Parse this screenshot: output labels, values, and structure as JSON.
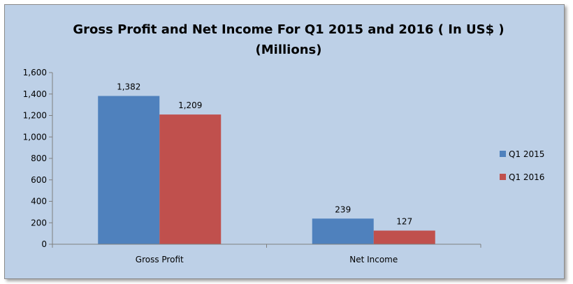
{
  "chart_data": {
    "type": "bar",
    "title_line1": "Gross Profit and Net Income For Q1 2015 and 2016 ( In US$ )",
    "title_line2": "(Millions)",
    "categories": [
      "Gross Profit",
      "Net Income"
    ],
    "series": [
      {
        "name": "Q1 2015",
        "values": [
          1382,
          239
        ],
        "labels": [
          "1,382",
          "239"
        ],
        "color": "#4f81bd"
      },
      {
        "name": "Q1 2016",
        "values": [
          1209,
          127
        ],
        "labels": [
          "1,209",
          "127"
        ],
        "color": "#c0504d"
      }
    ],
    "ylim": [
      0,
      1600
    ],
    "yticks": [
      0,
      200,
      400,
      600,
      800,
      1000,
      1200,
      1400,
      1600
    ],
    "ytick_labels": [
      "0",
      "200",
      "400",
      "600",
      "800",
      "1,000",
      "1,200",
      "1,400",
      "1,600"
    ],
    "grid": false,
    "legend_position": "right"
  }
}
